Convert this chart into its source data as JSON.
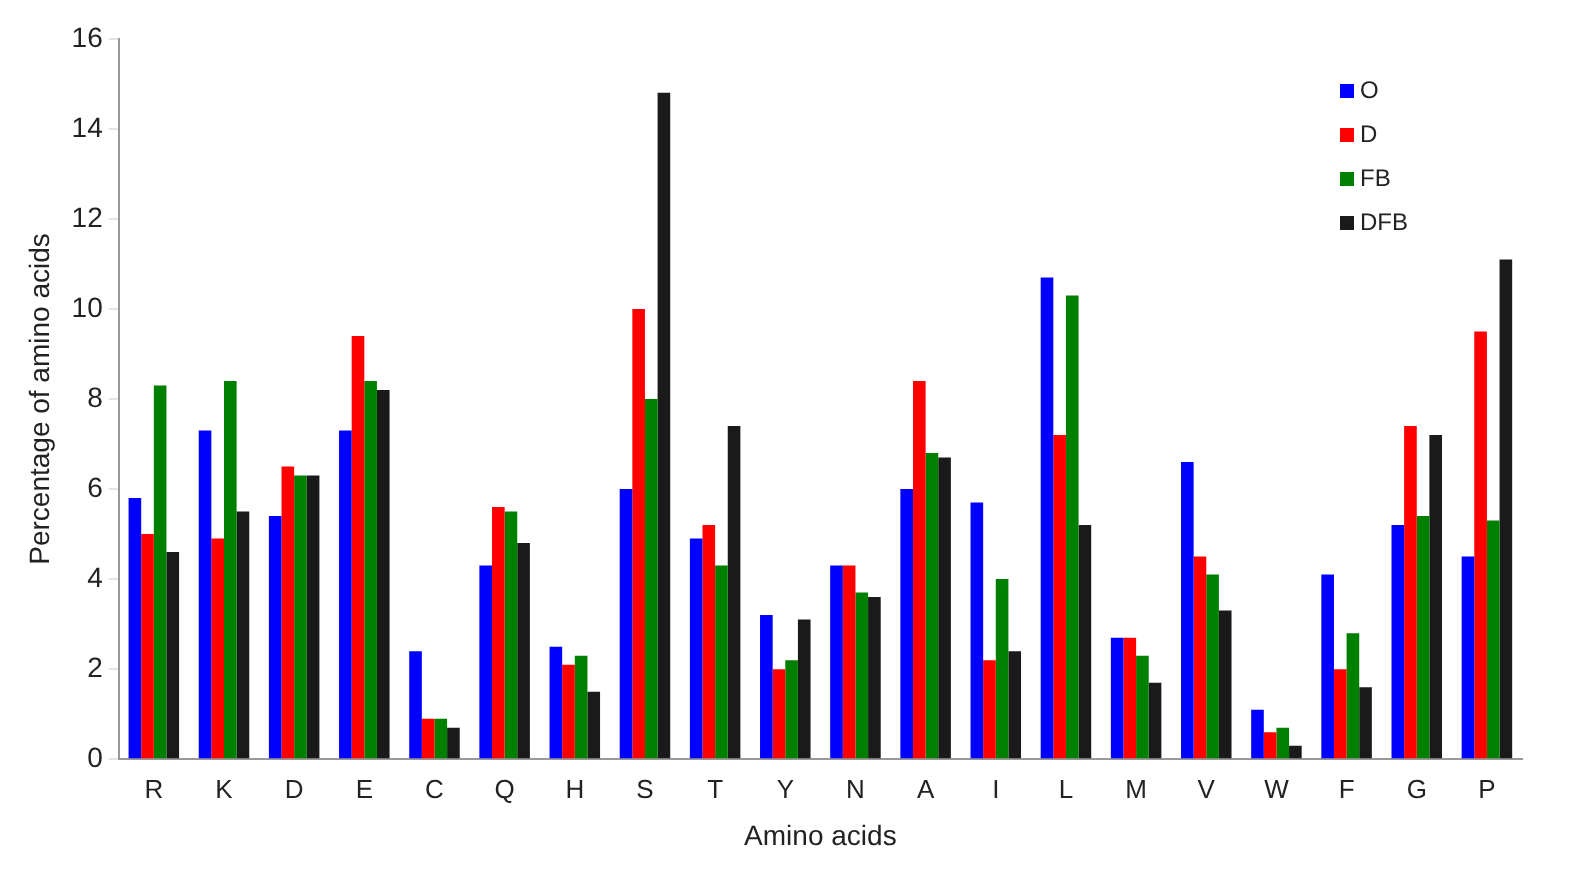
{
  "chart_data": {
    "type": "bar",
    "xlabel": "Amino acids",
    "ylabel": "Percentage of amino acids",
    "categories": [
      "R",
      "K",
      "D",
      "E",
      "C",
      "Q",
      "H",
      "S",
      "T",
      "Y",
      "N",
      "A",
      "I",
      "L",
      "M",
      "V",
      "W",
      "F",
      "G",
      "P"
    ],
    "series": [
      {
        "name": "O",
        "color": "#0000ff",
        "values": [
          5.8,
          7.3,
          5.4,
          7.3,
          2.4,
          4.3,
          2.5,
          6.0,
          4.9,
          3.2,
          4.3,
          6.0,
          5.7,
          10.7,
          2.7,
          6.6,
          1.1,
          4.1,
          5.2,
          4.5
        ]
      },
      {
        "name": "D",
        "color": "#ff0000",
        "values": [
          5.0,
          4.9,
          6.5,
          9.4,
          0.9,
          5.6,
          2.1,
          10.0,
          5.2,
          2.0,
          4.3,
          8.4,
          2.2,
          7.2,
          2.7,
          4.5,
          0.6,
          2.0,
          7.4,
          9.5
        ]
      },
      {
        "name": "FB",
        "color": "#008000",
        "values": [
          8.3,
          8.4,
          6.3,
          8.4,
          0.9,
          5.5,
          2.3,
          8.0,
          4.3,
          2.2,
          3.7,
          6.8,
          4.0,
          10.3,
          2.3,
          4.1,
          0.7,
          2.8,
          5.4,
          5.3
        ]
      },
      {
        "name": "DFB",
        "color": "#1a1a1a",
        "values": [
          4.6,
          5.5,
          6.3,
          8.2,
          0.7,
          4.8,
          1.5,
          14.8,
          7.4,
          3.1,
          3.6,
          6.7,
          2.4,
          5.2,
          1.7,
          3.3,
          0.3,
          1.6,
          7.2,
          11.1
        ]
      }
    ],
    "ylim": [
      0,
      16
    ],
    "yticks": [
      0,
      2,
      4,
      6,
      8,
      10,
      12,
      14,
      16
    ],
    "grid": false,
    "legend": "top right"
  }
}
